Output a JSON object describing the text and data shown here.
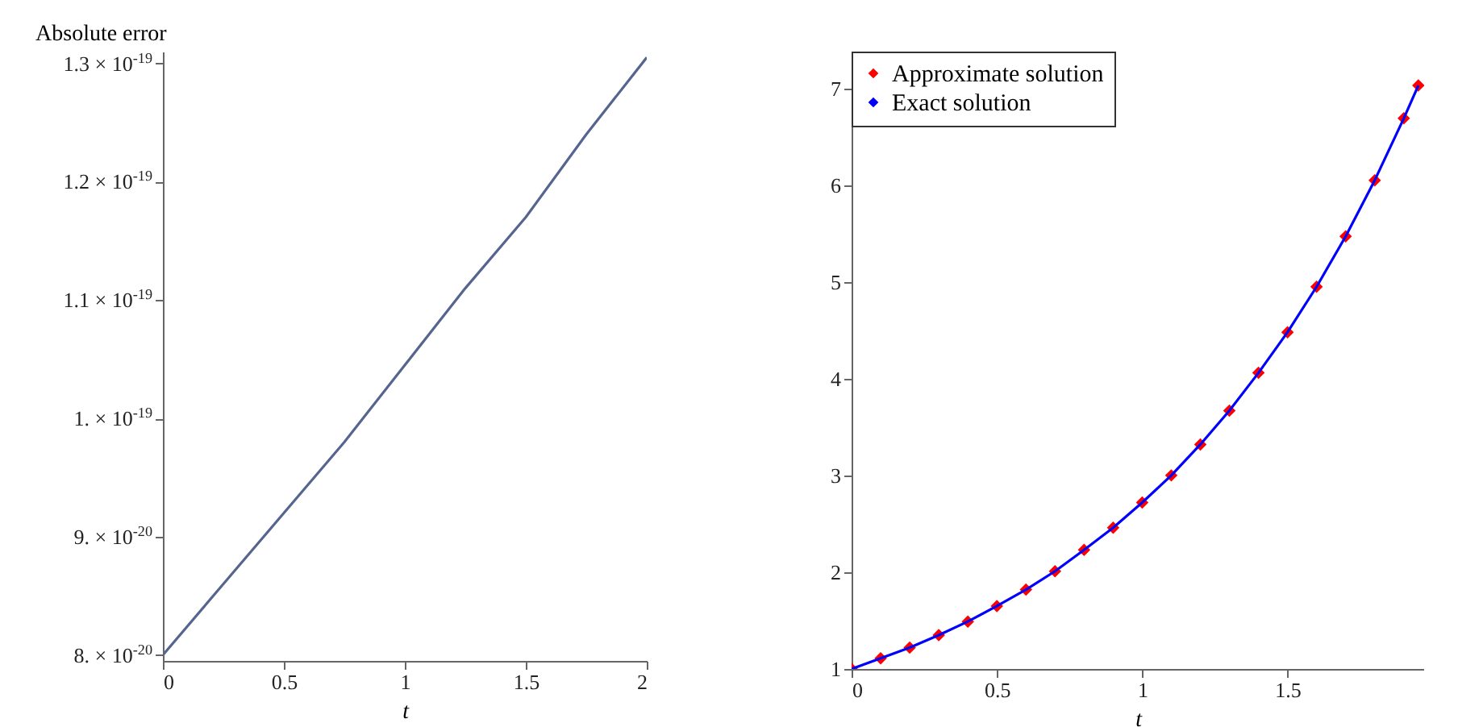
{
  "chart_data": [
    {
      "type": "line",
      "title": "Absolute error",
      "xlabel": "t",
      "x": [
        0,
        0.25,
        0.5,
        0.75,
        1,
        1.25,
        1.5,
        1.75,
        2
      ],
      "series": [
        {
          "color": "#56658f",
          "values": [
            8e-20,
            8.6e-20,
            9.2e-20,
            9.8e-20,
            1.045e-19,
            1.11e-19,
            1.17e-19,
            1.24e-19,
            1.305e-19
          ]
        }
      ],
      "xlim": [
        0,
        2
      ],
      "xticks": [
        0,
        0.5,
        1,
        1.5,
        2
      ],
      "ylim": [
        7.95e-20,
        1.31e-19
      ],
      "yticks": [
        {
          "value": 8e-20,
          "label": "8. × 10$^{-20}$"
        },
        {
          "value": 9e-20,
          "label": "9. × 10$^{-20}$"
        },
        {
          "value": 1e-19,
          "label": "1. × 10$^{-19}$"
        },
        {
          "value": 1.1e-19,
          "label": "1.1 × 10$^{-19}$"
        },
        {
          "value": 1.2e-19,
          "label": "1.2 × 10$^{-19}$"
        },
        {
          "value": 1.3e-19,
          "label": "1.3 × 10$^{-19}$"
        }
      ],
      "grid": false,
      "legend": false
    },
    {
      "type": "scatter",
      "xlabel": "t",
      "x": [
        0,
        0.1,
        0.2,
        0.3,
        0.4,
        0.5,
        0.6,
        0.7,
        0.8,
        0.9,
        1,
        1.1,
        1.2,
        1.3,
        1.4,
        1.5,
        1.6,
        1.7,
        1.8,
        1.9,
        1.95
      ],
      "series": [
        {
          "name": "Approximate solution",
          "type": "scatter",
          "marker": "diamond",
          "color": "#ff0000",
          "values": [
            1.0,
            1.11,
            1.22,
            1.35,
            1.49,
            1.65,
            1.82,
            2.01,
            2.23,
            2.46,
            2.72,
            3.0,
            3.32,
            3.67,
            4.06,
            4.48,
            4.95,
            5.47,
            6.05,
            6.69,
            7.03
          ]
        },
        {
          "name": "Exact solution",
          "type": "line",
          "color": "#0000ff",
          "values": [
            1.0,
            1.11,
            1.22,
            1.35,
            1.49,
            1.65,
            1.82,
            2.01,
            2.23,
            2.46,
            2.72,
            3.0,
            3.32,
            3.67,
            4.06,
            4.48,
            4.95,
            5.47,
            6.05,
            6.69,
            7.03
          ]
        }
      ],
      "xlim": [
        0,
        1.97
      ],
      "xticks": [
        0,
        0.5,
        1,
        1.5
      ],
      "ylim": [
        1,
        7.38
      ],
      "yticks": [
        1,
        2,
        3,
        4,
        5,
        6,
        7
      ],
      "grid": false,
      "legend": "top left"
    }
  ]
}
